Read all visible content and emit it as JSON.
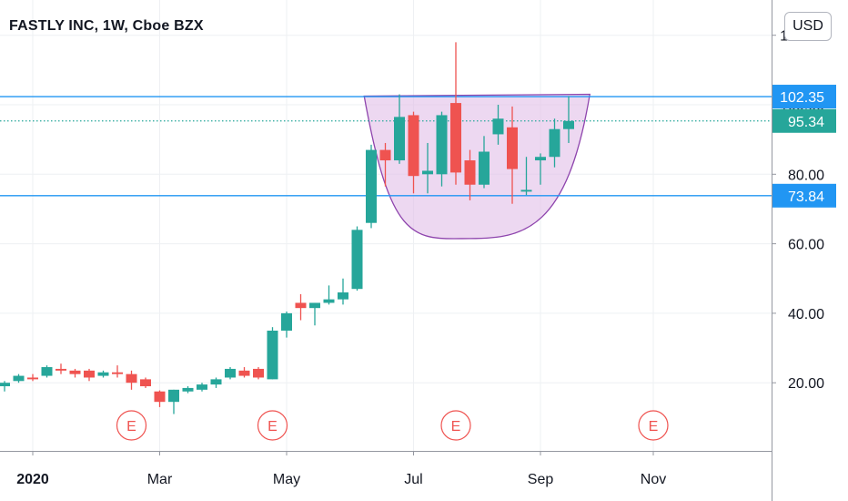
{
  "title": "FASTLY INC, 1W, Cboe BZX",
  "currency": "USD",
  "colors": {
    "up": "#26a69a",
    "down": "#ef5350",
    "level_line": "#2196f3",
    "last_price": "#26a69a",
    "pattern_fill": "#e1bee7",
    "pattern_stroke": "#8e44ad",
    "grid": "#eef0f3",
    "axis_text": "#131722"
  },
  "chart_data": {
    "type": "candlestick",
    "title": "FASTLY INC, 1W, Cboe BZX",
    "ylim": [
      0,
      122
    ],
    "y_ticks": [
      "20.00",
      "40.00",
      "60.00",
      "80.00",
      "100.00",
      "120.00"
    ],
    "x_tick_labels": [
      {
        "label": "2020",
        "week": 0,
        "bold": true
      },
      {
        "label": "Mar",
        "week": 9
      },
      {
        "label": "May",
        "week": 18
      },
      {
        "label": "Jul",
        "week": 27
      },
      {
        "label": "Sep",
        "week": 36
      },
      {
        "label": "Nov",
        "week": 44
      }
    ],
    "candles": [
      {
        "week": -2,
        "o": 19.0,
        "h": 20.5,
        "l": 17.5,
        "c": 20.0
      },
      {
        "week": -1,
        "o": 20.5,
        "h": 22.5,
        "l": 20.0,
        "c": 22.0
      },
      {
        "week": 0,
        "o": 21.5,
        "h": 22.5,
        "l": 20.5,
        "c": 21.0
      },
      {
        "week": 1,
        "o": 22.0,
        "h": 25.0,
        "l": 21.5,
        "c": 24.5
      },
      {
        "week": 2,
        "o": 24.0,
        "h": 25.5,
        "l": 22.5,
        "c": 23.5
      },
      {
        "week": 3,
        "o": 23.5,
        "h": 24.0,
        "l": 21.5,
        "c": 22.5
      },
      {
        "week": 4,
        "o": 23.5,
        "h": 24.0,
        "l": 20.5,
        "c": 21.5
      },
      {
        "week": 5,
        "o": 22.0,
        "h": 23.5,
        "l": 21.5,
        "c": 23.0
      },
      {
        "week": 6,
        "o": 23.0,
        "h": 25.0,
        "l": 21.5,
        "c": 22.5
      },
      {
        "week": 7,
        "o": 22.5,
        "h": 23.5,
        "l": 18.0,
        "c": 20.0
      },
      {
        "week": 8,
        "o": 21.0,
        "h": 21.5,
        "l": 18.5,
        "c": 19.0
      },
      {
        "week": 9,
        "o": 17.5,
        "h": 17.8,
        "l": 13.0,
        "c": 14.5
      },
      {
        "week": 10,
        "o": 14.5,
        "h": 18.0,
        "l": 11.0,
        "c": 18.0
      },
      {
        "week": 11,
        "o": 17.5,
        "h": 19.0,
        "l": 17.0,
        "c": 18.5
      },
      {
        "week": 12,
        "o": 18.0,
        "h": 20.0,
        "l": 17.5,
        "c": 19.5
      },
      {
        "week": 13,
        "o": 19.5,
        "h": 21.5,
        "l": 18.5,
        "c": 21.0
      },
      {
        "week": 14,
        "o": 21.5,
        "h": 24.5,
        "l": 21.0,
        "c": 24.0
      },
      {
        "week": 15,
        "o": 23.5,
        "h": 24.5,
        "l": 21.5,
        "c": 22.0
      },
      {
        "week": 16,
        "o": 24.0,
        "h": 24.5,
        "l": 21.0,
        "c": 21.5
      },
      {
        "week": 17,
        "o": 21.0,
        "h": 36.0,
        "l": 21.0,
        "c": 35.0
      },
      {
        "week": 18,
        "o": 35.0,
        "h": 40.5,
        "l": 33.0,
        "c": 40.0
      },
      {
        "week": 19,
        "o": 43.0,
        "h": 45.5,
        "l": 38.0,
        "c": 41.5
      },
      {
        "week": 20,
        "o": 41.5,
        "h": 43.0,
        "l": 36.5,
        "c": 43.0
      },
      {
        "week": 21,
        "o": 43.0,
        "h": 48.0,
        "l": 42.5,
        "c": 44.0
      },
      {
        "week": 22,
        "o": 44.0,
        "h": 50.0,
        "l": 42.5,
        "c": 46.0
      },
      {
        "week": 23,
        "o": 47.0,
        "h": 65.0,
        "l": 46.5,
        "c": 64.0
      },
      {
        "week": 24,
        "o": 66.0,
        "h": 88.5,
        "l": 64.5,
        "c": 87.0
      },
      {
        "week": 25,
        "o": 87.0,
        "h": 89.0,
        "l": 76.5,
        "c": 84.0
      },
      {
        "week": 26,
        "o": 84.0,
        "h": 103.0,
        "l": 83.0,
        "c": 96.5
      },
      {
        "week": 27,
        "o": 97.0,
        "h": 98.0,
        "l": 74.5,
        "c": 79.5
      },
      {
        "week": 28,
        "o": 80.0,
        "h": 89.0,
        "l": 74.5,
        "c": 81.0
      },
      {
        "week": 29,
        "o": 80.0,
        "h": 98.0,
        "l": 76.5,
        "c": 97.0
      },
      {
        "week": 30,
        "o": 100.5,
        "h": 118.0,
        "l": 77.0,
        "c": 80.5
      },
      {
        "week": 31,
        "o": 84.0,
        "h": 87.0,
        "l": 72.5,
        "c": 77.0
      },
      {
        "week": 32,
        "o": 77.0,
        "h": 91.0,
        "l": 76.0,
        "c": 86.5
      },
      {
        "week": 33,
        "o": 91.5,
        "h": 100.0,
        "l": 88.5,
        "c": 96.0
      },
      {
        "week": 34,
        "o": 93.5,
        "h": 99.5,
        "l": 71.5,
        "c": 81.5
      },
      {
        "week": 35,
        "o": 75.0,
        "h": 85.0,
        "l": 74.0,
        "c": 75.5
      },
      {
        "week": 36,
        "o": 84.0,
        "h": 86.0,
        "l": 77.0,
        "c": 85.0
      },
      {
        "week": 37,
        "o": 85.0,
        "h": 96.0,
        "l": 82.0,
        "c": 93.0
      },
      {
        "week": 38,
        "o": 93.0,
        "h": 102.5,
        "l": 89.0,
        "c": 95.34
      }
    ],
    "horizontal_levels": [
      {
        "label": "102.35",
        "value": 102.35
      },
      {
        "label": "73.84",
        "value": 73.84
      }
    ],
    "last_price": {
      "label": "95.34",
      "value": 95.34
    },
    "cup_pattern": {
      "start_week": 23.5,
      "bottom_week": 31.0,
      "end_week": 39.5,
      "rim_start": 102.5,
      "rim_end": 103.0,
      "bottom": 61.5
    },
    "earnings_markers": [
      {
        "label": "E",
        "week": 7
      },
      {
        "label": "E",
        "week": 17
      },
      {
        "label": "E",
        "week": 30
      },
      {
        "label": "E",
        "week": 44
      }
    ]
  }
}
